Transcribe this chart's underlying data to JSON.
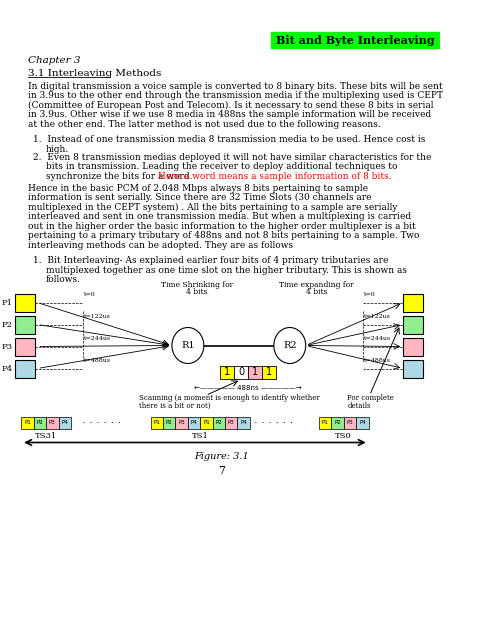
{
  "title": "Bit and Byte Interleaving",
  "chapter": "Chapter 3",
  "section": "3.1 Interleaving Methods",
  "figure_caption": "Figure: 3.1",
  "page_num": "7",
  "bg_color": "#ffffff",
  "title_bg": "#00ff00",
  "title_color": "#000000",
  "red_text_color": "#ff0000",
  "text_color": "#000000",
  "para1_lines": [
    "In digital transmission a voice sample is converted to 8 binary bits. These bits will be sent",
    "in 3.9us to the other end through the transmission media if the multiplexing used is CEPT",
    "(Committee of European Post and Telecom). Is it necessary to send these 8 bits in serial",
    "in 3.9us. Other wise if we use 8 media in 488ns the sample information will be received",
    "at the other end. The latter method is not used due to the following reasons."
  ],
  "list1_line1": "1.  Instead of one transmission media 8 transmission media to be used. Hence cost is",
  "list1_line2": "high.",
  "list2_line1": "2.  Even 8 transmission medias deployed it will not have similar characteristics for the",
  "list2_line2": "bits in transmission. Leading the receiver to deploy additional techniques to",
  "list2_line3a": "synchronize the bits for a word. ",
  "list2_line3b": "Here a word means a sample information of 8 bits.",
  "para2_lines": [
    "Hence in the basic PCM of 2.048 Mbps always 8 bits pertaining to sample",
    "information is sent serially. Since there are 32 Time Slots (30 channels are",
    "multiplexed in the CEPT system) . All the bits pertaining to a sample are serially",
    "interleaved and sent in one transmission media. But when a multiplexing is carried",
    "out in the higher order the basic information to the higher order multiplexer is a bit",
    "pertaining to a primary tributary of 488ns and not 8 bits pertaining to a sample. Two",
    "interleaving methods can be adopted. They are as follows"
  ],
  "bit_intro_line1": "1.  Bit Interleaving- As explained earlier four bits of 4 primary tributaries are",
  "bit_intro_line2": "multiplexed together as one time slot on the higher tributary. This is shown as",
  "bit_intro_line3": "follows.",
  "left_box_colors": [
    "#ffff00",
    "#90ee90",
    "#ffb6c1",
    "#add8e6"
  ],
  "left_box_labels": [
    "P1",
    "P2",
    "P3",
    "P4"
  ],
  "bit_values": [
    "1",
    "0",
    "1",
    "1"
  ],
  "bit_colors": [
    "#ffff00",
    "#ffffff",
    "#ffb6c1",
    "#ffff00"
  ],
  "ts_labels": [
    "TS31",
    "TS1",
    "TS0"
  ],
  "time_shrink_label": [
    "Time Shrinking for",
    "4 bits"
  ],
  "time_expand_label": [
    "Time expanding for",
    "4 bits"
  ],
  "t_labels": [
    "t=0",
    "t=122us",
    "t=244us",
    "t=488us"
  ],
  "scan_text": [
    "Scanning (a moment is enough to identify whether",
    "there is a bit or not)"
  ],
  "complete_text": [
    "For complete",
    "details"
  ],
  "r1_label": "R1",
  "r2_label": "R2",
  "ns_label": "488ns"
}
